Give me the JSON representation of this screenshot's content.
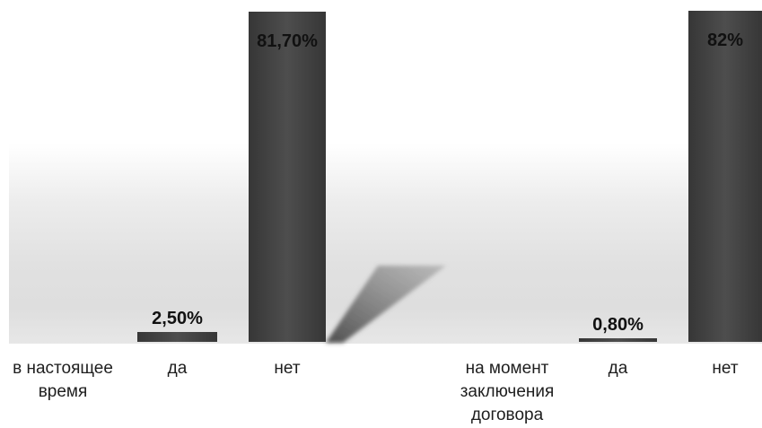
{
  "chart_data": {
    "type": "bar",
    "groups": [
      {
        "label": "в настоящее время",
        "categories": [
          "да",
          "нет"
        ],
        "values": [
          2.5,
          81.7
        ],
        "value_labels": [
          "2,50%",
          "81,70%"
        ]
      },
      {
        "label": "на момент заключения договора",
        "categories": [
          "да",
          "нет"
        ],
        "values": [
          0.8,
          82
        ],
        "value_labels": [
          "0,80%",
          "82%"
        ]
      }
    ],
    "ylim": [
      0,
      82
    ],
    "grid": false,
    "legend": false,
    "bar_color": "#444444"
  }
}
